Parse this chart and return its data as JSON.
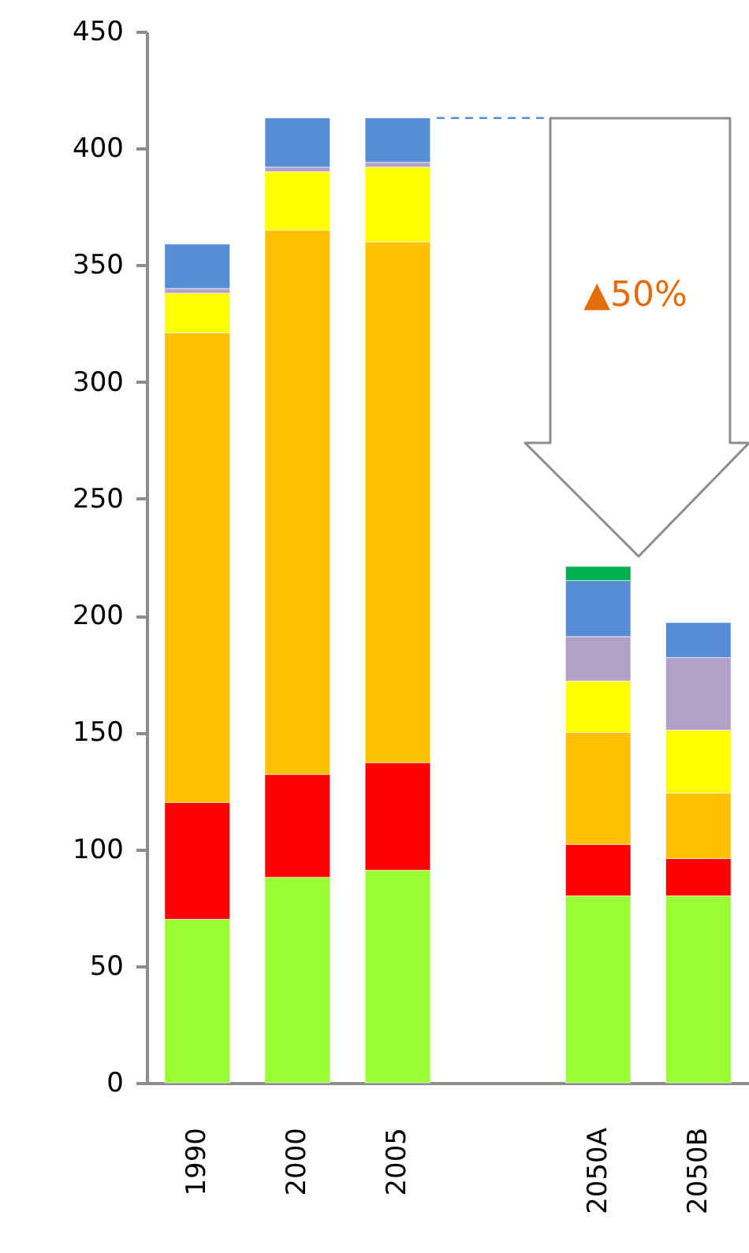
{
  "chart_data": {
    "type": "bar",
    "stacked": true,
    "categories": [
      "1990",
      "2000",
      "2005",
      null,
      "2050A",
      "2050B"
    ],
    "series": [
      {
        "color": "#99ff33",
        "values": [
          70,
          88,
          91,
          null,
          80,
          80
        ]
      },
      {
        "color": "#ff0000",
        "values": [
          50,
          44,
          46,
          null,
          22,
          16
        ]
      },
      {
        "color": "#ffc000",
        "values": [
          201,
          233,
          223,
          null,
          48,
          28
        ]
      },
      {
        "color": "#ffff00",
        "values": [
          17,
          25,
          32,
          null,
          22,
          27
        ]
      },
      {
        "color": "#b1a0c7",
        "values": [
          2,
          2,
          2,
          null,
          19,
          31
        ]
      },
      {
        "color": "#558ed5",
        "values": [
          19,
          21,
          19,
          null,
          24,
          15
        ]
      },
      {
        "color": "#00b050",
        "values": [
          null,
          null,
          null,
          null,
          6,
          null
        ]
      }
    ],
    "ylim": [
      0,
      450
    ],
    "yticks": [
      0,
      50,
      100,
      150,
      200,
      250,
      300,
      350,
      400,
      450
    ],
    "grid": false,
    "ref_lines": [
      {
        "axis": "y",
        "value": 413,
        "color": "#558ed5",
        "line_style": "dashed"
      }
    ],
    "annotations": [
      "▲50%"
    ]
  }
}
